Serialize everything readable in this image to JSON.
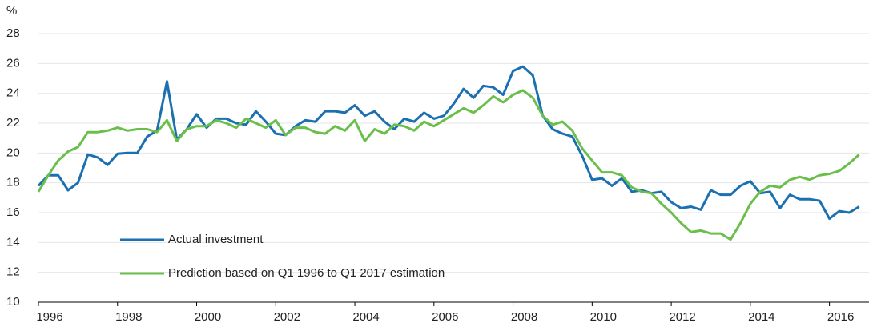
{
  "chart_data": {
    "type": "line",
    "y_label": "%",
    "x": [
      1996,
      1996.25,
      1996.5,
      1996.75,
      1997,
      1997.25,
      1997.5,
      1997.75,
      1998,
      1998.25,
      1998.5,
      1998.75,
      1999,
      1999.25,
      1999.5,
      1999.75,
      2000,
      2000.25,
      2000.5,
      2000.75,
      2001,
      2001.25,
      2001.5,
      2001.75,
      2002,
      2002.25,
      2002.5,
      2002.75,
      2003,
      2003.25,
      2003.5,
      2003.75,
      2004,
      2004.25,
      2004.5,
      2004.75,
      2005,
      2005.25,
      2005.5,
      2005.75,
      2006,
      2006.25,
      2006.5,
      2006.75,
      2007,
      2007.25,
      2007.5,
      2007.75,
      2008,
      2008.25,
      2008.5,
      2008.75,
      2009,
      2009.25,
      2009.5,
      2009.75,
      2010,
      2010.25,
      2010.5,
      2010.75,
      2011,
      2011.25,
      2011.5,
      2011.75,
      2012,
      2012.25,
      2012.5,
      2012.75,
      2013,
      2013.25,
      2013.5,
      2013.75,
      2014,
      2014.25,
      2014.5,
      2014.75,
      2015,
      2015.25,
      2015.5,
      2015.75,
      2016,
      2016.25,
      2016.5,
      2016.75
    ],
    "series": [
      {
        "name": "Actual investment",
        "color": "#1a70b0",
        "values": [
          17.8,
          18.5,
          18.5,
          17.5,
          18.0,
          19.9,
          19.7,
          19.2,
          19.95,
          20.0,
          20.0,
          21.1,
          21.5,
          24.8,
          20.9,
          21.6,
          22.6,
          21.7,
          22.3,
          22.3,
          22.0,
          21.9,
          22.8,
          22.1,
          21.3,
          21.2,
          21.8,
          22.2,
          22.1,
          22.8,
          22.8,
          22.7,
          23.2,
          22.5,
          22.8,
          22.1,
          21.6,
          22.3,
          22.1,
          22.7,
          22.3,
          22.5,
          23.3,
          24.3,
          23.7,
          24.5,
          24.4,
          23.9,
          25.5,
          25.8,
          25.2,
          22.5,
          21.6,
          21.3,
          21.1,
          19.8,
          18.2,
          18.3,
          17.8,
          18.3,
          17.4,
          17.5,
          17.3,
          17.4,
          16.7,
          16.3,
          16.4,
          16.2,
          17.5,
          17.2,
          17.2,
          17.8,
          18.1,
          17.3,
          17.4,
          16.3,
          17.2,
          16.9,
          16.9,
          16.8,
          15.6,
          16.1,
          16.0,
          16.4
        ]
      },
      {
        "name": "Prediction based on Q1 1996 to Q1 2017 estimation",
        "color": "#6abf4b",
        "values": [
          17.4,
          18.5,
          19.5,
          20.1,
          20.4,
          21.4,
          21.4,
          21.5,
          21.7,
          21.5,
          21.6,
          21.6,
          21.4,
          22.2,
          20.8,
          21.6,
          21.8,
          21.8,
          22.2,
          22.0,
          21.7,
          22.3,
          22.0,
          21.7,
          22.2,
          21.2,
          21.7,
          21.7,
          21.4,
          21.3,
          21.8,
          21.5,
          22.2,
          20.8,
          21.6,
          21.3,
          21.9,
          21.8,
          21.5,
          22.1,
          21.8,
          22.2,
          22.6,
          23.0,
          22.7,
          23.2,
          23.8,
          23.4,
          23.9,
          24.2,
          23.7,
          22.5,
          21.9,
          22.1,
          21.5,
          20.3,
          19.5,
          18.7,
          18.7,
          18.5,
          17.7,
          17.4,
          17.3,
          16.6,
          16.0,
          15.3,
          14.7,
          14.8,
          14.6,
          14.6,
          14.2,
          15.3,
          16.6,
          17.4,
          17.8,
          17.7,
          18.2,
          18.4,
          18.2,
          18.5,
          18.6,
          18.8,
          19.3,
          19.9
        ]
      }
    ],
    "xlim": [
      1996,
      2017
    ],
    "xticks": [
      1996,
      1998,
      2000,
      2002,
      2004,
      2006,
      2008,
      2010,
      2012,
      2014,
      2016
    ],
    "ylim": [
      10,
      28
    ],
    "yticks": [
      10,
      12,
      14,
      16,
      18,
      20,
      22,
      24,
      26,
      28
    ],
    "grid": true,
    "legend": "lower left"
  }
}
